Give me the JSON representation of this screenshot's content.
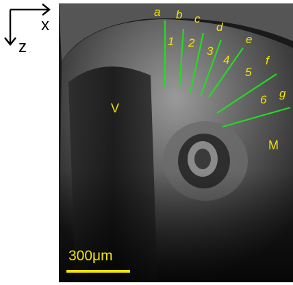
{
  "axes": {
    "x": "x",
    "z": "z"
  },
  "lines": [
    {
      "label": "a"
    },
    {
      "label": "b"
    },
    {
      "label": "c"
    },
    {
      "label": "d"
    },
    {
      "label": "e"
    },
    {
      "label": "f"
    },
    {
      "label": "g"
    }
  ],
  "gaps": [
    {
      "label": "1"
    },
    {
      "label": "2"
    },
    {
      "label": "3"
    },
    {
      "label": "4"
    },
    {
      "label": "5"
    },
    {
      "label": "6"
    }
  ],
  "regions": [
    {
      "label": "V"
    },
    {
      "label": "M"
    }
  ],
  "scale_bar": {
    "label": "300μm"
  }
}
